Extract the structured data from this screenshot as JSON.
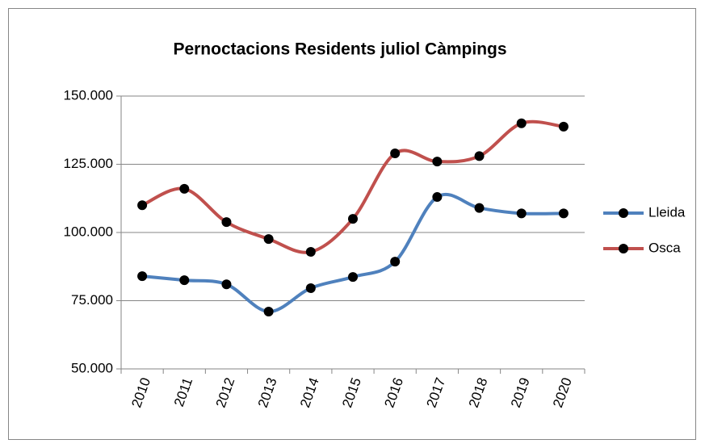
{
  "chart_data": {
    "type": "line",
    "title": "Pernoctacions Residents  juliol Càmpings",
    "categories": [
      "2010",
      "2011",
      "2012",
      "2013",
      "2014",
      "2015",
      "2016",
      "2017",
      "2018",
      "2019",
      "2020"
    ],
    "series": [
      {
        "name": "Lleida",
        "color": "#4f81bd",
        "values": [
          84000,
          82500,
          81000,
          71000,
          79600,
          83700,
          89300,
          113000,
          109000,
          107000,
          107000
        ]
      },
      {
        "name": "Osca",
        "color": "#c0504d",
        "values": [
          110000,
          116000,
          103800,
          97600,
          92900,
          105000,
          129000,
          126000,
          128000,
          140000,
          138800
        ]
      }
    ],
    "ylim": [
      50000,
      150000
    ],
    "yticks": [
      {
        "value": 50000,
        "label": "50.000"
      },
      {
        "value": 75000,
        "label": "75.000"
      },
      {
        "value": 100000,
        "label": "100.000"
      },
      {
        "value": 125000,
        "label": "125.000"
      },
      {
        "value": 150000,
        "label": "150.000"
      }
    ],
    "grid": true,
    "legend": "right"
  }
}
